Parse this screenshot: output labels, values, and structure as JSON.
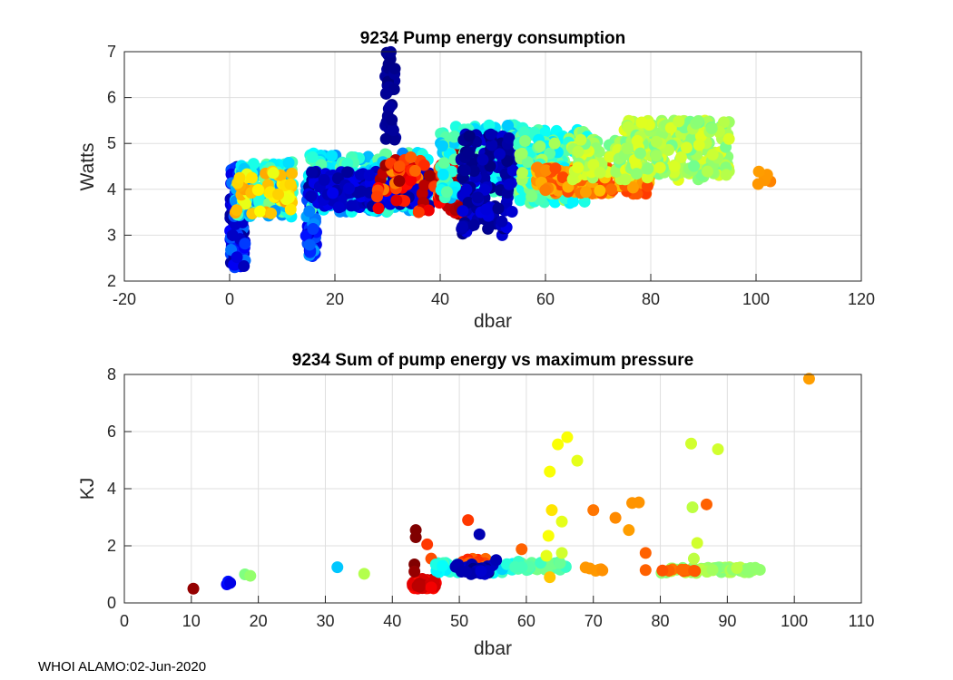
{
  "footer": "WHOI ALAMO:02-Jun-2020",
  "chart_data": [
    {
      "type": "scatter",
      "title": "9234 Pump energy consumption",
      "xlabel": "dbar",
      "ylabel": "Watts",
      "xlim": [
        -20,
        120
      ],
      "ylim": [
        2,
        7
      ],
      "xticks": [
        -20,
        0,
        20,
        40,
        60,
        80,
        100,
        120
      ],
      "yticks": [
        2,
        3,
        4,
        5,
        6,
        7
      ],
      "grid": true,
      "colormap": "jet",
      "clusters": [
        {
          "x": [
            0,
            3
          ],
          "y": [
            2.3,
            4.5
          ],
          "n": 140,
          "c": [
            0.02,
            0.25
          ]
        },
        {
          "x": [
            1,
            12
          ],
          "y": [
            3.4,
            4.6
          ],
          "n": 140,
          "c": [
            0.25,
            0.5
          ]
        },
        {
          "x": [
            1,
            12
          ],
          "y": [
            3.4,
            4.4
          ],
          "n": 50,
          "c": [
            0.6,
            0.72
          ]
        },
        {
          "x": [
            14.5,
            16.5
          ],
          "y": [
            2.5,
            4.4
          ],
          "n": 70,
          "c": [
            0.08,
            0.3
          ]
        },
        {
          "x": [
            15,
            38
          ],
          "y": [
            3.5,
            4.8
          ],
          "n": 260,
          "c": [
            0.25,
            0.48
          ]
        },
        {
          "x": [
            15,
            38
          ],
          "y": [
            3.6,
            4.4
          ],
          "n": 160,
          "c": [
            0.02,
            0.12
          ]
        },
        {
          "x": [
            28,
            48
          ],
          "y": [
            3.5,
            4.7
          ],
          "n": 90,
          "c": [
            0.72,
            0.98
          ]
        },
        {
          "x": [
            29.5,
            31.5
          ],
          "y": [
            5.0,
            7.0
          ],
          "n": 40,
          "c": [
            0.0,
            0.04
          ]
        },
        {
          "x": [
            42,
            46
          ],
          "y": [
            3.4,
            5.2
          ],
          "n": 70,
          "c": [
            0.86,
            1.0
          ]
        },
        {
          "x": [
            40,
            57
          ],
          "y": [
            3.8,
            5.4
          ],
          "n": 190,
          "c": [
            0.3,
            0.48
          ]
        },
        {
          "x": [
            44,
            54
          ],
          "y": [
            3.0,
            5.2
          ],
          "n": 150,
          "c": [
            0.0,
            0.1
          ]
        },
        {
          "x": [
            55,
            68
          ],
          "y": [
            3.7,
            5.3
          ],
          "n": 170,
          "c": [
            0.35,
            0.55
          ]
        },
        {
          "x": [
            58,
            80
          ],
          "y": [
            3.9,
            4.5
          ],
          "n": 190,
          "c": [
            0.68,
            0.82
          ]
        },
        {
          "x": [
            65,
            75
          ],
          "y": [
            4.2,
            5.1
          ],
          "n": 60,
          "c": [
            0.48,
            0.6
          ]
        },
        {
          "x": [
            75,
            95
          ],
          "y": [
            4.2,
            5.5
          ],
          "n": 250,
          "c": [
            0.48,
            0.6
          ]
        },
        {
          "x": [
            99,
            103
          ],
          "y": [
            4.1,
            4.4
          ],
          "n": 6,
          "c": [
            0.72,
            0.75
          ]
        }
      ]
    },
    {
      "type": "scatter",
      "title": "9234 Sum of pump energy vs maximum pressure",
      "xlabel": "dbar",
      "ylabel": "KJ",
      "xlim": [
        0,
        110
      ],
      "ylim": [
        0,
        8
      ],
      "xticks": [
        0,
        10,
        20,
        30,
        40,
        50,
        60,
        70,
        80,
        90,
        100,
        110
      ],
      "yticks": [
        0,
        2,
        4,
        6,
        8
      ],
      "grid": true,
      "colormap": "jet",
      "points": [
        {
          "x": 10.3,
          "y": 0.5,
          "c": 0.98
        },
        {
          "x": 15.3,
          "y": 0.65,
          "c": 0.12
        },
        {
          "x": 15.5,
          "y": 0.75,
          "c": 0.14
        },
        {
          "x": 15.8,
          "y": 0.7,
          "c": 0.1
        },
        {
          "x": 18.0,
          "y": 1.0,
          "c": 0.5
        },
        {
          "x": 18.8,
          "y": 0.95,
          "c": 0.52
        },
        {
          "x": 31.8,
          "y": 1.25,
          "c": 0.32
        },
        {
          "x": 35.8,
          "y": 1.02,
          "c": 0.55
        },
        {
          "x": 43.5,
          "y": 2.55,
          "c": 1.0
        },
        {
          "x": 43.5,
          "y": 2.3,
          "c": 1.0
        },
        {
          "x": 43.3,
          "y": 1.35,
          "c": 1.0
        },
        {
          "x": 43.3,
          "y": 1.1,
          "c": 0.98
        },
        {
          "x": 45.2,
          "y": 2.05,
          "c": 0.82
        },
        {
          "x": 45.8,
          "y": 1.55,
          "c": 0.8
        },
        {
          "x": 46.5,
          "y": 1.35,
          "c": 0.4
        },
        {
          "x": 47.5,
          "y": 1.3,
          "c": 0.38
        },
        {
          "x": 51.3,
          "y": 2.9,
          "c": 0.82
        },
        {
          "x": 53.0,
          "y": 2.4,
          "c": 0.05
        },
        {
          "x": 55.5,
          "y": 1.5,
          "c": 0.05
        },
        {
          "x": 59.3,
          "y": 1.88,
          "c": 0.78
        },
        {
          "x": 63.5,
          "y": 4.6,
          "c": 0.62
        },
        {
          "x": 63.8,
          "y": 3.25,
          "c": 0.65
        },
        {
          "x": 63.3,
          "y": 2.35,
          "c": 0.62
        },
        {
          "x": 63.0,
          "y": 1.65,
          "c": 0.6
        },
        {
          "x": 63.5,
          "y": 0.9,
          "c": 0.68
        },
        {
          "x": 64.7,
          "y": 5.55,
          "c": 0.62
        },
        {
          "x": 65.3,
          "y": 2.85,
          "c": 0.6
        },
        {
          "x": 65.3,
          "y": 1.75,
          "c": 0.58
        },
        {
          "x": 66.1,
          "y": 5.8,
          "c": 0.62
        },
        {
          "x": 67.6,
          "y": 4.98,
          "c": 0.6
        },
        {
          "x": 70.0,
          "y": 3.25,
          "c": 0.76
        },
        {
          "x": 73.3,
          "y": 2.98,
          "c": 0.74
        },
        {
          "x": 75.3,
          "y": 2.55,
          "c": 0.72
        },
        {
          "x": 75.8,
          "y": 3.5,
          "c": 0.73
        },
        {
          "x": 76.8,
          "y": 3.52,
          "c": 0.73
        },
        {
          "x": 77.8,
          "y": 1.75,
          "c": 0.78
        },
        {
          "x": 77.8,
          "y": 1.15,
          "c": 0.78
        },
        {
          "x": 84.6,
          "y": 5.58,
          "c": 0.58
        },
        {
          "x": 84.8,
          "y": 3.35,
          "c": 0.56
        },
        {
          "x": 85.5,
          "y": 2.1,
          "c": 0.58
        },
        {
          "x": 85.0,
          "y": 1.55,
          "c": 0.56
        },
        {
          "x": 86.9,
          "y": 3.45,
          "c": 0.78
        },
        {
          "x": 88.6,
          "y": 5.38,
          "c": 0.58
        },
        {
          "x": 102.2,
          "y": 7.85,
          "c": 0.72
        }
      ],
      "clusters": [
        {
          "x": [
            43,
            46.5
          ],
          "y": [
            0.5,
            0.85
          ],
          "n": 70,
          "c": [
            0.86,
            0.95
          ]
        },
        {
          "x": [
            46.5,
            58
          ],
          "y": [
            1.05,
            1.45
          ],
          "n": 70,
          "c": [
            0.32,
            0.45
          ]
        },
        {
          "x": [
            50,
            54
          ],
          "y": [
            1.2,
            1.55
          ],
          "n": 22,
          "c": [
            0.76,
            0.84
          ]
        },
        {
          "x": [
            49,
            55
          ],
          "y": [
            1.0,
            1.35
          ],
          "n": 30,
          "c": [
            0.0,
            0.08
          ]
        },
        {
          "x": [
            58,
            66
          ],
          "y": [
            1.15,
            1.45
          ],
          "n": 40,
          "c": [
            0.42,
            0.5
          ]
        },
        {
          "x": [
            68,
            72
          ],
          "y": [
            1.1,
            1.25
          ],
          "n": 6,
          "c": [
            0.72,
            0.74
          ]
        },
        {
          "x": [
            80,
            95
          ],
          "y": [
            1.05,
            1.25
          ],
          "n": 70,
          "c": [
            0.5,
            0.56
          ]
        },
        {
          "x": [
            80,
            86
          ],
          "y": [
            1.05,
            1.2
          ],
          "n": 10,
          "c": [
            0.76,
            0.8
          ]
        }
      ]
    }
  ]
}
